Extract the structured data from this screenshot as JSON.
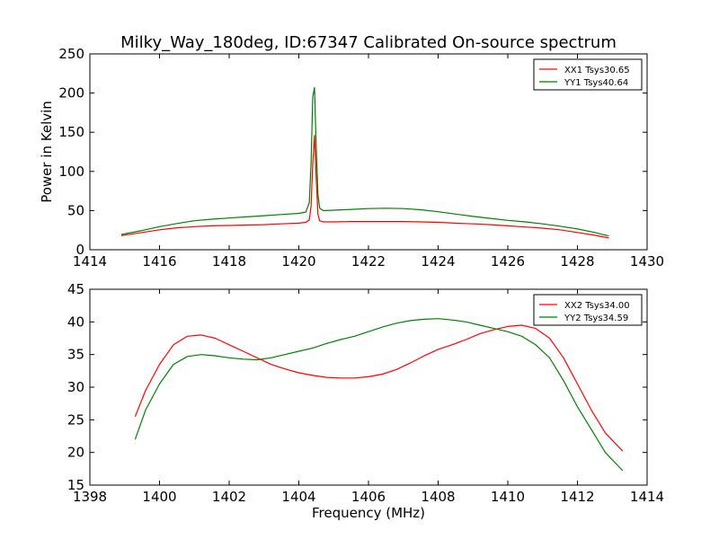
{
  "figure": {
    "title": "Milky_Way_180deg, ID:67347 Calibrated On-source spectrum"
  },
  "chart_data": [
    {
      "type": "line",
      "title": "Milky_Way_180deg, ID:67347 Calibrated On-source spectrum",
      "xlabel": "",
      "ylabel": "Power in Kelvin",
      "xlim": [
        1414,
        1430
      ],
      "ylim": [
        0,
        250
      ],
      "xticks": [
        "1414",
        "1416",
        "1418",
        "1420",
        "1422",
        "1424",
        "1426",
        "1428",
        "1430"
      ],
      "yticks": [
        "0",
        "50",
        "100",
        "150",
        "200",
        "250"
      ],
      "grid": false,
      "legend": "top-right",
      "series": [
        {
          "name": "XX1 Tsys30.65",
          "color": "#ff0000",
          "x": [
            1414.9,
            1415.5,
            1416.0,
            1416.5,
            1417.0,
            1417.5,
            1418.0,
            1418.5,
            1419.0,
            1419.5,
            1420.0,
            1420.2,
            1420.3,
            1420.35,
            1420.4,
            1420.45,
            1420.5,
            1420.55,
            1420.6,
            1420.7,
            1420.8,
            1421.0,
            1421.5,
            1422.0,
            1422.5,
            1423.0,
            1423.5,
            1424.0,
            1424.5,
            1425.0,
            1425.5,
            1426.0,
            1426.5,
            1427.0,
            1427.5,
            1428.0,
            1428.5,
            1428.9
          ],
          "values": [
            18,
            22,
            25.5,
            28,
            29.5,
            30.5,
            31,
            31.5,
            32,
            33,
            34,
            35,
            38,
            55,
            110,
            146,
            90,
            45,
            37,
            35.5,
            35.5,
            35.5,
            36,
            36,
            36,
            36,
            35.5,
            35,
            34,
            33,
            32,
            30.5,
            29,
            27.5,
            25.5,
            22,
            18.5,
            15
          ]
        },
        {
          "name": "YY1 Tsys40.64",
          "color": "#008000",
          "x": [
            1414.9,
            1415.5,
            1416.0,
            1416.5,
            1417.0,
            1417.5,
            1418.0,
            1418.5,
            1419.0,
            1419.5,
            1420.0,
            1420.2,
            1420.3,
            1420.35,
            1420.4,
            1420.45,
            1420.5,
            1420.55,
            1420.6,
            1420.7,
            1420.8,
            1421.0,
            1421.5,
            1422.0,
            1422.5,
            1423.0,
            1423.5,
            1424.0,
            1424.5,
            1425.0,
            1425.5,
            1426.0,
            1426.5,
            1427.0,
            1427.5,
            1428.0,
            1428.5,
            1428.9
          ],
          "values": [
            19.5,
            24.5,
            29.5,
            33.5,
            37,
            39,
            40.5,
            42,
            43.5,
            45,
            46.5,
            48,
            60,
            110,
            195,
            207,
            130,
            70,
            53,
            50,
            50,
            50.5,
            51.5,
            52.5,
            53,
            52.5,
            51,
            48.5,
            45.5,
            42.5,
            40,
            37.5,
            35.5,
            33,
            30,
            26.5,
            22,
            17.5
          ]
        }
      ]
    },
    {
      "type": "line",
      "title": "",
      "xlabel": "Frequency (MHz)",
      "ylabel": "",
      "xlim": [
        1398,
        1414
      ],
      "ylim": [
        15,
        45
      ],
      "xticks": [
        "1398",
        "1400",
        "1402",
        "1404",
        "1406",
        "1408",
        "1410",
        "1412",
        "1414"
      ],
      "yticks": [
        "15",
        "20",
        "25",
        "30",
        "35",
        "40",
        "45"
      ],
      "grid": false,
      "legend": "top-right",
      "series": [
        {
          "name": "XX2 Tsys34.00",
          "color": "#ff0000",
          "x": [
            1399.3,
            1399.6,
            1400.0,
            1400.4,
            1400.8,
            1401.2,
            1401.6,
            1402.0,
            1402.4,
            1402.8,
            1403.2,
            1403.6,
            1404.0,
            1404.4,
            1404.8,
            1405.2,
            1405.6,
            1406.0,
            1406.4,
            1406.8,
            1407.2,
            1407.6,
            1408.0,
            1408.4,
            1408.8,
            1409.2,
            1409.6,
            1410.0,
            1410.4,
            1410.8,
            1411.2,
            1411.6,
            1412.0,
            1412.4,
            1412.8,
            1413.3
          ],
          "values": [
            25.5,
            29.5,
            33.5,
            36.5,
            37.8,
            38,
            37.5,
            36.5,
            35.5,
            34.5,
            33.5,
            32.8,
            32.2,
            31.8,
            31.5,
            31.4,
            31.4,
            31.6,
            32,
            32.7,
            33.7,
            34.8,
            35.8,
            36.5,
            37.3,
            38.2,
            38.8,
            39.3,
            39.5,
            39,
            37.5,
            34.5,
            30.5,
            26.5,
            23,
            20.2
          ]
        },
        {
          "name": "YY2 Tsys34.59",
          "color": "#008000",
          "x": [
            1399.3,
            1399.6,
            1400.0,
            1400.4,
            1400.8,
            1401.2,
            1401.6,
            1402.0,
            1402.4,
            1402.8,
            1403.2,
            1403.6,
            1404.0,
            1404.4,
            1404.8,
            1405.2,
            1405.6,
            1406.0,
            1406.4,
            1406.8,
            1407.2,
            1407.6,
            1408.0,
            1408.4,
            1408.8,
            1409.2,
            1409.6,
            1410.0,
            1410.4,
            1410.8,
            1411.2,
            1411.6,
            1412.0,
            1412.4,
            1412.8,
            1413.3
          ],
          "values": [
            22,
            26.5,
            30.5,
            33.5,
            34.7,
            35,
            34.8,
            34.5,
            34.3,
            34.2,
            34.5,
            35,
            35.5,
            36,
            36.7,
            37.3,
            37.8,
            38.5,
            39.2,
            39.8,
            40.2,
            40.4,
            40.5,
            40.3,
            40,
            39.5,
            39,
            38.5,
            37.8,
            36.5,
            34.5,
            31,
            27,
            23.5,
            20,
            17.2
          ]
        }
      ]
    }
  ]
}
